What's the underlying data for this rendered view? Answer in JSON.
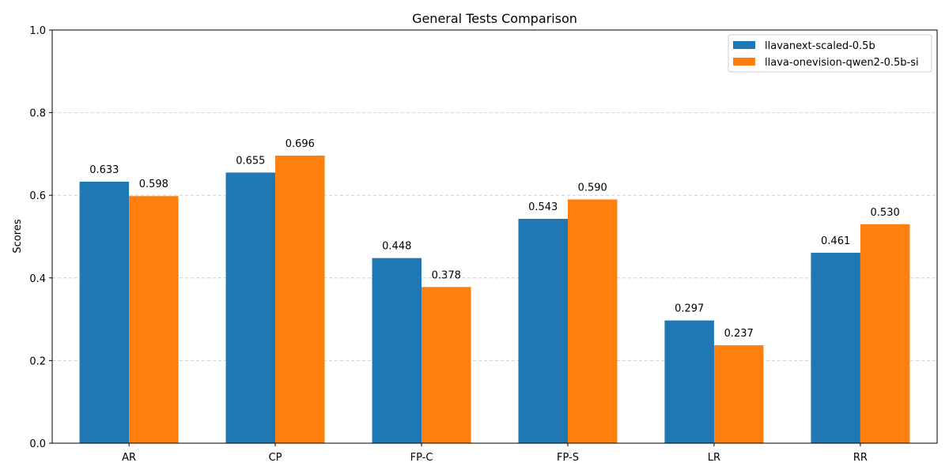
{
  "chart_data": {
    "type": "bar",
    "title": "General Tests Comparison",
    "xlabel": "",
    "ylabel": "Scores",
    "categories": [
      "AR",
      "CP",
      "FP-C",
      "FP-S",
      "LR",
      "RR"
    ],
    "series": [
      {
        "name": "llavanext-scaled-0.5b",
        "values": [
          0.633,
          0.655,
          0.448,
          0.543,
          0.297,
          0.461
        ],
        "labels": [
          "0.633",
          "0.655",
          "0.448",
          "0.543",
          "0.297",
          "0.461"
        ],
        "color": "#1f77b4"
      },
      {
        "name": "llava-onevision-qwen2-0.5b-si",
        "values": [
          0.598,
          0.696,
          0.378,
          0.59,
          0.237,
          0.53
        ],
        "labels": [
          "0.598",
          "0.696",
          "0.378",
          "0.590",
          "0.237",
          "0.530"
        ],
        "color": "#ff7f0e"
      }
    ],
    "ylim": [
      0,
      1.0
    ],
    "yticks": [
      "0.0",
      "0.2",
      "0.4",
      "0.6",
      "0.8",
      "1.0"
    ],
    "grid": "y-dashed",
    "legend_position": "top-right"
  }
}
